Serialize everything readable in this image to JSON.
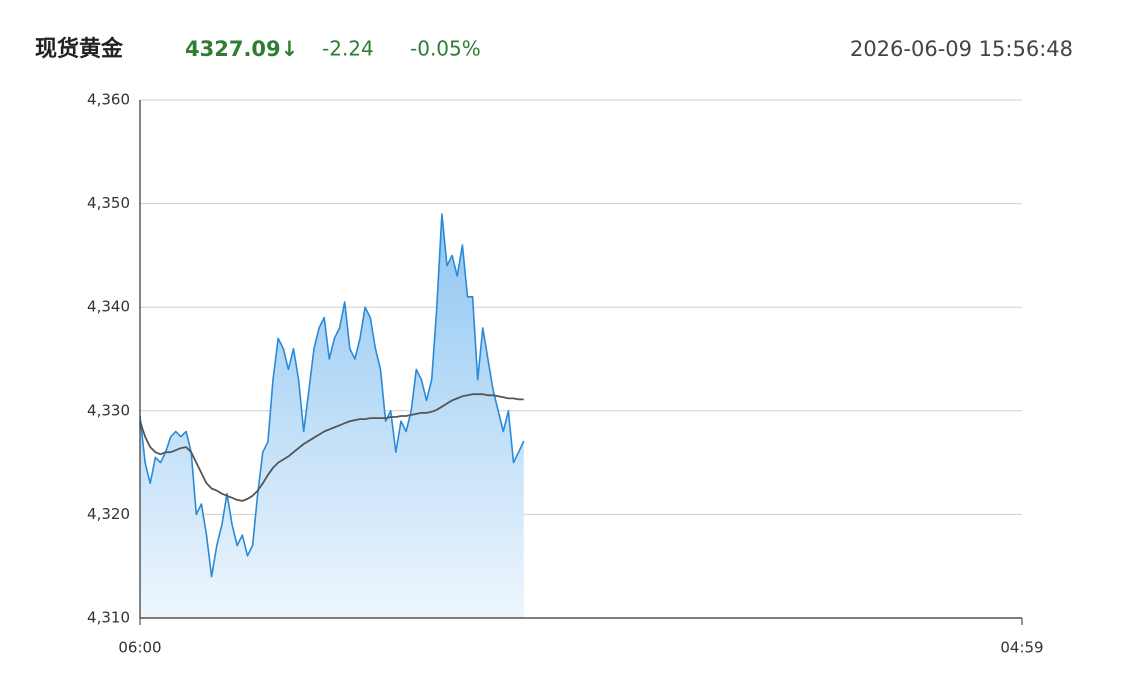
{
  "header": {
    "title": "现货黄金",
    "price": "4327.09↓",
    "change": "-2.24",
    "change_pct": "-0.05%",
    "time": "2026-06-09 15:56:48"
  },
  "chart_data": {
    "type": "line",
    "area": true,
    "x": [
      0,
      8,
      16,
      24,
      32,
      40,
      48,
      56,
      64,
      72,
      80,
      88,
      96,
      104,
      112,
      120,
      128,
      136,
      144,
      152,
      160,
      168,
      176,
      184,
      192,
      200,
      208,
      216,
      224,
      232,
      240,
      248,
      256,
      264,
      272,
      280,
      288,
      296,
      304,
      312,
      320,
      328,
      336,
      344,
      352,
      360,
      368,
      376,
      384,
      392,
      400,
      408,
      416,
      424,
      432,
      440,
      448,
      456,
      464,
      472,
      480,
      488,
      496,
      504,
      512,
      520,
      528,
      536,
      544,
      552,
      560,
      568,
      576,
      584,
      592,
      600
    ],
    "series": [
      {
        "color": "#2a8ad8",
        "values": [
          4329.5,
          4325,
          4323,
          4325.5,
          4325,
          4326,
          4327.5,
          4328,
          4327.5,
          4328,
          4326,
          4320,
          4321,
          4318,
          4314,
          4317,
          4319,
          4322,
          4319,
          4317,
          4318,
          4316,
          4317,
          4322,
          4326,
          4327,
          4333,
          4337,
          4336,
          4334,
          4336,
          4333,
          4328,
          4332,
          4336,
          4338,
          4339,
          4335,
          4337,
          4338,
          4340.5,
          4336,
          4335,
          4337,
          4340,
          4339,
          4336,
          4334,
          4329,
          4330,
          4326,
          4329,
          4328,
          4330,
          4334,
          4333,
          4331,
          4333,
          4340,
          4349,
          4344,
          4345,
          4343,
          4346,
          4341,
          4341,
          4333,
          4338,
          4335,
          4332,
          4330,
          4328,
          4330,
          4325,
          4326,
          4327.09
        ]
      },
      {
        "color": "#555555",
        "values": [
          4329,
          4327.5,
          4326.5,
          4326,
          4325.8,
          4326,
          4326,
          4326.2,
          4326.4,
          4326.5,
          4326,
          4325,
          4324,
          4323,
          4322.5,
          4322.3,
          4322,
          4321.8,
          4321.6,
          4321.4,
          4321.3,
          4321.5,
          4321.8,
          4322.3,
          4323,
          4323.8,
          4324.5,
          4325,
          4325.3,
          4325.6,
          4326,
          4326.4,
          4326.8,
          4327.1,
          4327.4,
          4327.7,
          4328,
          4328.2,
          4328.4,
          4328.6,
          4328.8,
          4329,
          4329.1,
          4329.2,
          4329.2,
          4329.3,
          4329.3,
          4329.3,
          4329.3,
          4329.4,
          4329.4,
          4329.5,
          4329.5,
          4329.6,
          4329.7,
          4329.8,
          4329.8,
          4329.9,
          4330.1,
          4330.4,
          4330.7,
          4331,
          4331.2,
          4331.4,
          4331.5,
          4331.6,
          4331.6,
          4331.6,
          4331.5,
          4331.5,
          4331.4,
          4331.3,
          4331.2,
          4331.2,
          4331.1,
          4331.1
        ]
      }
    ],
    "xlim": [
      0,
      1379
    ],
    "xticks": [
      {
        "value": 0,
        "label": "06:00"
      },
      {
        "value": 1379,
        "label": "04:59"
      }
    ],
    "ylim": [
      4310,
      4360
    ],
    "yticks": [
      {
        "value": 4310,
        "label": "4,310"
      },
      {
        "value": 4320,
        "label": "4,320"
      },
      {
        "value": 4330,
        "label": "4,330"
      },
      {
        "value": 4340,
        "label": "4,340"
      },
      {
        "value": 4350,
        "label": "4,350"
      },
      {
        "value": 4360,
        "label": "4,360"
      }
    ],
    "grid": true
  }
}
